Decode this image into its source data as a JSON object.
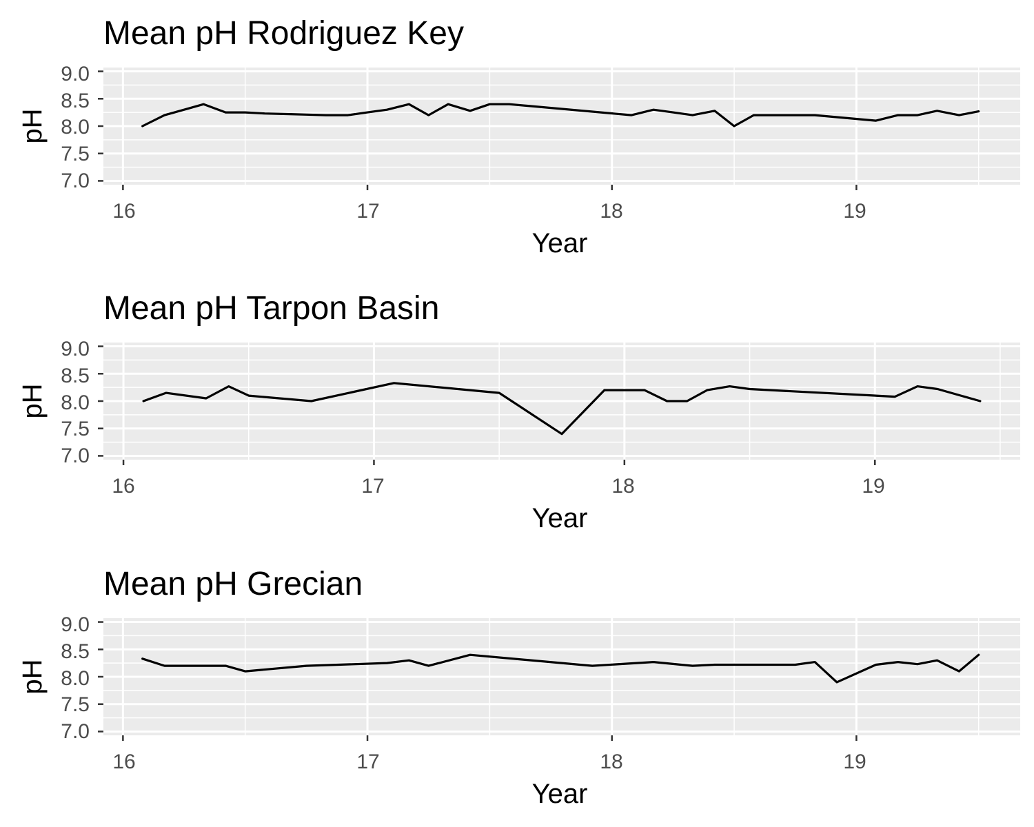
{
  "chart_data": [
    {
      "type": "line",
      "title": "Mean pH Rodriguez Key",
      "xlabel": "Year",
      "ylabel": "pH",
      "xlim": [
        15.92,
        19.67
      ],
      "ylim": [
        6.93,
        9.07
      ],
      "x_ticks": [
        "16",
        "17",
        "18",
        "19"
      ],
      "y_ticks": [
        "7.0",
        "7.5",
        "8.0",
        "8.5",
        "9.0"
      ],
      "grid": true,
      "x": [
        16.08,
        16.17,
        16.25,
        16.33,
        16.42,
        16.5,
        16.58,
        16.67,
        16.75,
        16.83,
        16.92,
        17.0,
        17.08,
        17.17,
        17.25,
        17.33,
        17.42,
        17.5,
        17.58,
        18.08,
        18.17,
        18.25,
        18.33,
        18.42,
        18.5,
        18.58,
        18.83,
        19.08,
        19.17,
        19.25,
        19.33,
        19.42,
        19.5
      ],
      "y": [
        8.0,
        8.2,
        8.3,
        8.4,
        8.25,
        8.25,
        8.23,
        8.22,
        8.21,
        8.2,
        8.2,
        8.25,
        8.3,
        8.4,
        8.2,
        8.4,
        8.28,
        8.4,
        8.4,
        8.2,
        8.3,
        8.25,
        8.2,
        8.28,
        8.0,
        8.2,
        8.2,
        8.1,
        8.2,
        8.2,
        8.28,
        8.2,
        8.27
      ]
    },
    {
      "type": "line",
      "title": "Mean pH Tarpon Basin",
      "xlabel": "Year",
      "ylabel": "pH",
      "xlim": [
        15.92,
        19.58
      ],
      "ylim": [
        6.93,
        9.07
      ],
      "x_ticks": [
        "16",
        "17",
        "18",
        "19"
      ],
      "y_ticks": [
        "7.0",
        "7.5",
        "8.0",
        "8.5",
        "9.0"
      ],
      "grid": true,
      "x": [
        16.08,
        16.17,
        16.33,
        16.42,
        16.5,
        16.75,
        17.08,
        17.5,
        17.75,
        17.92,
        18.08,
        18.17,
        18.25,
        18.33,
        18.42,
        18.5,
        19.08,
        19.17,
        19.25,
        19.42
      ],
      "y": [
        8.0,
        8.15,
        8.05,
        8.27,
        8.1,
        8.0,
        8.33,
        8.15,
        7.4,
        8.2,
        8.2,
        8.0,
        8.0,
        8.2,
        8.27,
        8.22,
        8.08,
        8.27,
        8.22,
        8.0
      ]
    },
    {
      "type": "line",
      "title": "Mean pH Grecian",
      "xlabel": "Year",
      "ylabel": "pH",
      "xlim": [
        15.92,
        19.67
      ],
      "ylim": [
        6.93,
        9.07
      ],
      "x_ticks": [
        "16",
        "17",
        "18",
        "19"
      ],
      "y_ticks": [
        "7.0",
        "7.5",
        "8.0",
        "8.5",
        "9.0"
      ],
      "grid": true,
      "x": [
        16.08,
        16.17,
        16.42,
        16.5,
        16.75,
        17.08,
        17.17,
        17.25,
        17.42,
        17.92,
        18.17,
        18.33,
        18.42,
        18.75,
        18.83,
        18.92,
        19.08,
        19.17,
        19.25,
        19.33,
        19.42,
        19.5
      ],
      "y": [
        8.33,
        8.2,
        8.2,
        8.1,
        8.2,
        8.25,
        8.3,
        8.2,
        8.4,
        8.2,
        8.27,
        8.2,
        8.22,
        8.22,
        8.27,
        7.9,
        8.22,
        8.27,
        8.23,
        8.3,
        8.1,
        8.4
      ]
    }
  ]
}
